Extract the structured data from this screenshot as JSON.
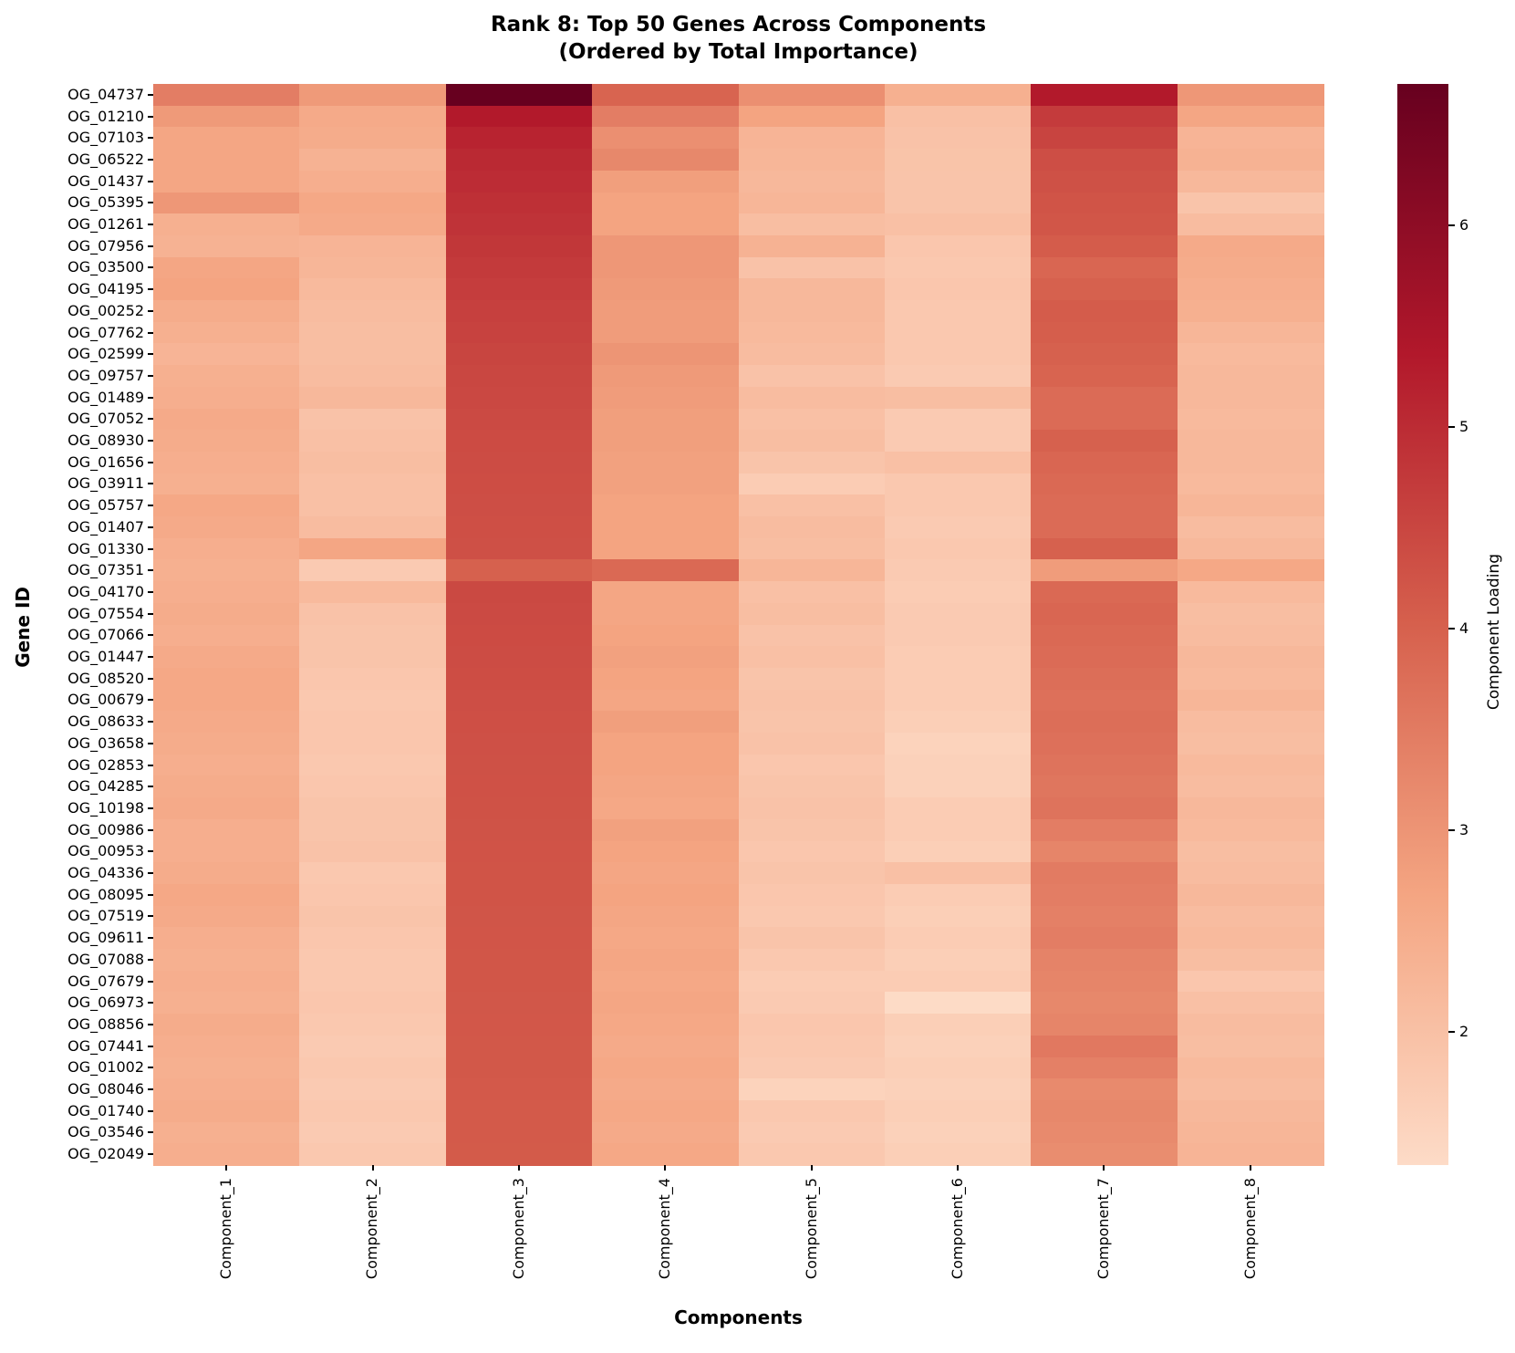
{
  "chart_data": {
    "type": "heatmap",
    "title_line1": "Rank 8: Top 50 Genes Across Components",
    "title_line2": "(Ordered by Total Importance)",
    "title": "Rank 8: Top 50 Genes Across Components (Ordered by Total Importance)",
    "xlabel": "Components",
    "ylabel": "Gene ID",
    "colorbar_label": "Component Loading",
    "legend_position": "right-colorbar",
    "grid": false,
    "x_categories": [
      "Component_1",
      "Component_2",
      "Component_3",
      "Component_4",
      "Component_5",
      "Component_6",
      "Component_7",
      "Component_8"
    ],
    "y_categories": [
      "OG_04737",
      "OG_01210",
      "OG_07103",
      "OG_06522",
      "OG_01437",
      "OG_05395",
      "OG_01261",
      "OG_07956",
      "OG_03500",
      "OG_04195",
      "OG_00252",
      "OG_07762",
      "OG_02599",
      "OG_09757",
      "OG_01489",
      "OG_07052",
      "OG_08930",
      "OG_01656",
      "OG_03911",
      "OG_05757",
      "OG_01407",
      "OG_01330",
      "OG_07351",
      "OG_04170",
      "OG_07554",
      "OG_07066",
      "OG_01447",
      "OG_08520",
      "OG_00679",
      "OG_08633",
      "OG_03658",
      "OG_02853",
      "OG_04285",
      "OG_10198",
      "OG_00986",
      "OG_00953",
      "OG_04336",
      "OG_08095",
      "OG_07519",
      "OG_09611",
      "OG_07088",
      "OG_07679",
      "OG_06973",
      "OG_08856",
      "OG_07441",
      "OG_01002",
      "OG_08046",
      "OG_01740",
      "OG_03546",
      "OG_02049"
    ],
    "values": [
      [
        3.45,
        2.9,
        6.7,
        3.95,
        3.1,
        2.4,
        5.35,
        2.95
      ],
      [
        2.9,
        2.55,
        5.35,
        3.45,
        2.7,
        2.0,
        4.7,
        2.65
      ],
      [
        2.65,
        2.5,
        5.15,
        3.1,
        2.3,
        1.95,
        4.55,
        2.3
      ],
      [
        2.65,
        2.35,
        5.05,
        3.25,
        2.25,
        1.92,
        4.35,
        2.35
      ],
      [
        2.65,
        2.45,
        4.98,
        2.8,
        2.2,
        1.9,
        4.3,
        2.2
      ],
      [
        2.95,
        2.6,
        4.92,
        2.7,
        2.25,
        1.9,
        4.25,
        1.9
      ],
      [
        2.4,
        2.55,
        4.86,
        2.7,
        2.05,
        2.0,
        4.2,
        2.1
      ],
      [
        2.35,
        2.3,
        4.79,
        2.95,
        2.35,
        1.85,
        4.1,
        2.55
      ],
      [
        2.65,
        2.25,
        4.73,
        2.95,
        1.95,
        1.8,
        3.9,
        2.5
      ],
      [
        2.7,
        2.15,
        4.67,
        2.9,
        2.2,
        1.85,
        4.0,
        2.45
      ],
      [
        2.5,
        2.1,
        4.62,
        2.85,
        2.2,
        1.8,
        4.1,
        2.4
      ],
      [
        2.4,
        2.05,
        4.57,
        2.85,
        2.15,
        1.8,
        4.05,
        2.25
      ],
      [
        2.3,
        2.05,
        4.53,
        3.0,
        2.1,
        1.8,
        4.0,
        2.15
      ],
      [
        2.4,
        2.1,
        4.49,
        2.9,
        1.95,
        1.75,
        3.95,
        2.2
      ],
      [
        2.45,
        2.2,
        4.46,
        2.85,
        2.1,
        2.05,
        3.8,
        2.2
      ],
      [
        2.55,
        1.95,
        4.43,
        2.8,
        2.0,
        1.75,
        3.8,
        2.15
      ],
      [
        2.5,
        2.0,
        4.41,
        2.8,
        2.05,
        1.75,
        4.0,
        2.2
      ],
      [
        2.45,
        2.05,
        4.39,
        2.75,
        1.9,
        2.0,
        3.9,
        2.2
      ],
      [
        2.4,
        2.0,
        4.37,
        2.75,
        1.7,
        1.8,
        3.85,
        2.15
      ],
      [
        2.6,
        2.0,
        4.35,
        2.7,
        2.0,
        1.8,
        3.8,
        2.25
      ],
      [
        2.55,
        2.1,
        4.33,
        2.7,
        2.1,
        1.75,
        3.8,
        2.1
      ],
      [
        2.45,
        2.65,
        4.31,
        2.7,
        2.05,
        1.8,
        4.0,
        2.2
      ],
      [
        2.4,
        1.75,
        4.0,
        3.85,
        2.25,
        1.75,
        2.85,
        2.6
      ],
      [
        2.45,
        2.15,
        4.45,
        2.65,
        2.0,
        1.7,
        3.85,
        2.15
      ],
      [
        2.5,
        1.95,
        4.43,
        2.65,
        2.05,
        1.75,
        3.9,
        2.05
      ],
      [
        2.45,
        1.9,
        4.41,
        2.7,
        1.95,
        1.75,
        3.85,
        2.1
      ],
      [
        2.55,
        1.9,
        4.39,
        2.75,
        2.0,
        1.7,
        3.8,
        2.2
      ],
      [
        2.6,
        1.85,
        4.37,
        2.7,
        1.9,
        1.7,
        3.75,
        2.15
      ],
      [
        2.6,
        1.8,
        4.35,
        2.65,
        1.95,
        1.7,
        3.7,
        2.25
      ],
      [
        2.55,
        1.85,
        4.33,
        2.8,
        1.9,
        1.65,
        3.75,
        2.1
      ],
      [
        2.5,
        1.85,
        4.31,
        2.7,
        1.95,
        1.55,
        3.7,
        2.05
      ],
      [
        2.45,
        1.8,
        4.3,
        2.7,
        1.85,
        1.6,
        3.65,
        2.15
      ],
      [
        2.5,
        1.85,
        4.29,
        2.65,
        1.9,
        1.6,
        3.6,
        2.1
      ],
      [
        2.55,
        1.9,
        4.28,
        2.6,
        1.95,
        1.7,
        3.65,
        2.2
      ],
      [
        2.45,
        1.9,
        4.27,
        2.75,
        1.9,
        1.7,
        3.45,
        2.15
      ],
      [
        2.45,
        1.95,
        4.26,
        2.7,
        1.85,
        1.65,
        3.3,
        2.05
      ],
      [
        2.5,
        1.8,
        4.25,
        2.65,
        1.9,
        2.0,
        3.5,
        2.1
      ],
      [
        2.6,
        1.85,
        4.24,
        2.7,
        1.85,
        1.7,
        3.45,
        2.2
      ],
      [
        2.55,
        1.9,
        4.23,
        2.65,
        1.8,
        1.65,
        3.4,
        2.1
      ],
      [
        2.45,
        1.85,
        4.22,
        2.6,
        1.9,
        1.7,
        3.45,
        2.15
      ],
      [
        2.4,
        1.8,
        4.21,
        2.65,
        1.8,
        1.65,
        3.35,
        2.05
      ],
      [
        2.45,
        1.8,
        4.2,
        2.6,
        1.7,
        1.7,
        3.3,
        1.85
      ],
      [
        2.4,
        1.85,
        4.19,
        2.65,
        1.75,
        1.35,
        3.25,
        2.0
      ],
      [
        2.5,
        1.8,
        4.18,
        2.6,
        1.85,
        1.65,
        3.3,
        2.1
      ],
      [
        2.45,
        1.75,
        4.17,
        2.55,
        1.8,
        1.6,
        3.55,
        2.05
      ],
      [
        2.4,
        1.8,
        4.16,
        2.6,
        1.75,
        1.65,
        3.4,
        2.15
      ],
      [
        2.45,
        1.75,
        4.15,
        2.55,
        1.55,
        1.6,
        3.2,
        2.1
      ],
      [
        2.5,
        1.8,
        4.14,
        2.6,
        1.8,
        1.65,
        3.25,
        2.2
      ],
      [
        2.4,
        1.75,
        4.13,
        2.55,
        1.75,
        1.6,
        3.2,
        2.25
      ],
      [
        2.45,
        1.8,
        4.12,
        2.6,
        1.8,
        1.65,
        3.15,
        2.3
      ]
    ],
    "vmin": 1.34,
    "vmax": 6.7,
    "colorbar_ticks": [
      2,
      3,
      4,
      5,
      6
    ],
    "colormap_stops": [
      {
        "value": 1.34,
        "color": "#fddbc7"
      },
      {
        "value": 2.68,
        "color": "#f4a582"
      },
      {
        "value": 4.02,
        "color": "#d6604d"
      },
      {
        "value": 5.36,
        "color": "#b2182b"
      },
      {
        "value": 6.7,
        "color": "#67001f"
      }
    ]
  }
}
